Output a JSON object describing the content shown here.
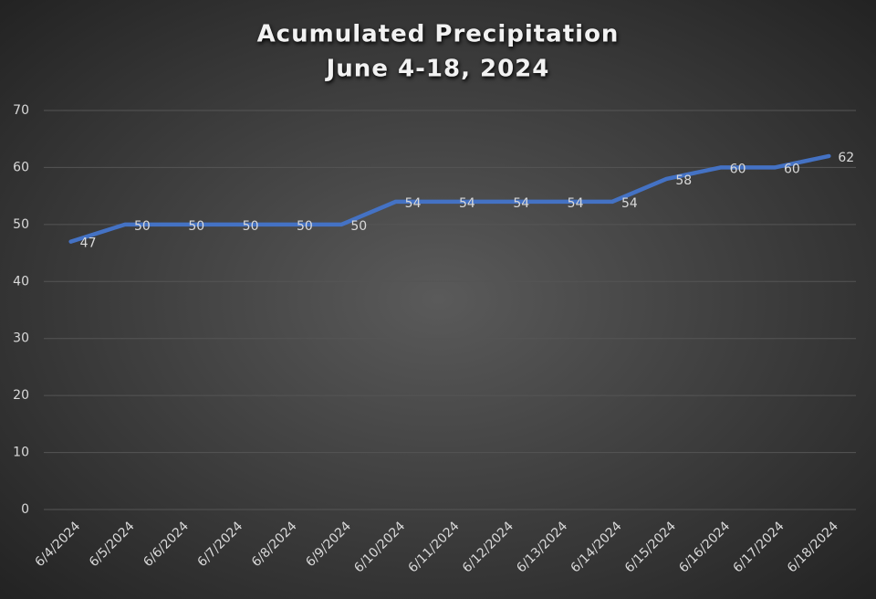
{
  "chart_data": {
    "type": "line",
    "title": "Acumulated Precipitation",
    "subtitle": "June 4-18, 2024",
    "categories": [
      "6/4/2024",
      "6/5/2024",
      "6/6/2024",
      "6/7/2024",
      "6/8/2024",
      "6/9/2024",
      "6/10/2024",
      "6/11/2024",
      "6/12/2024",
      "6/13/2024",
      "6/14/2024",
      "6/15/2024",
      "6/16/2024",
      "6/17/2024",
      "6/18/2024"
    ],
    "values": [
      47,
      50,
      50,
      50,
      50,
      50,
      54,
      54,
      54,
      54,
      54,
      58,
      60,
      60,
      62
    ],
    "color": "#4472c4",
    "ylim": [
      0,
      70
    ],
    "yticks": [
      0,
      10,
      20,
      30,
      40,
      50,
      60,
      70
    ],
    "grid": true
  }
}
